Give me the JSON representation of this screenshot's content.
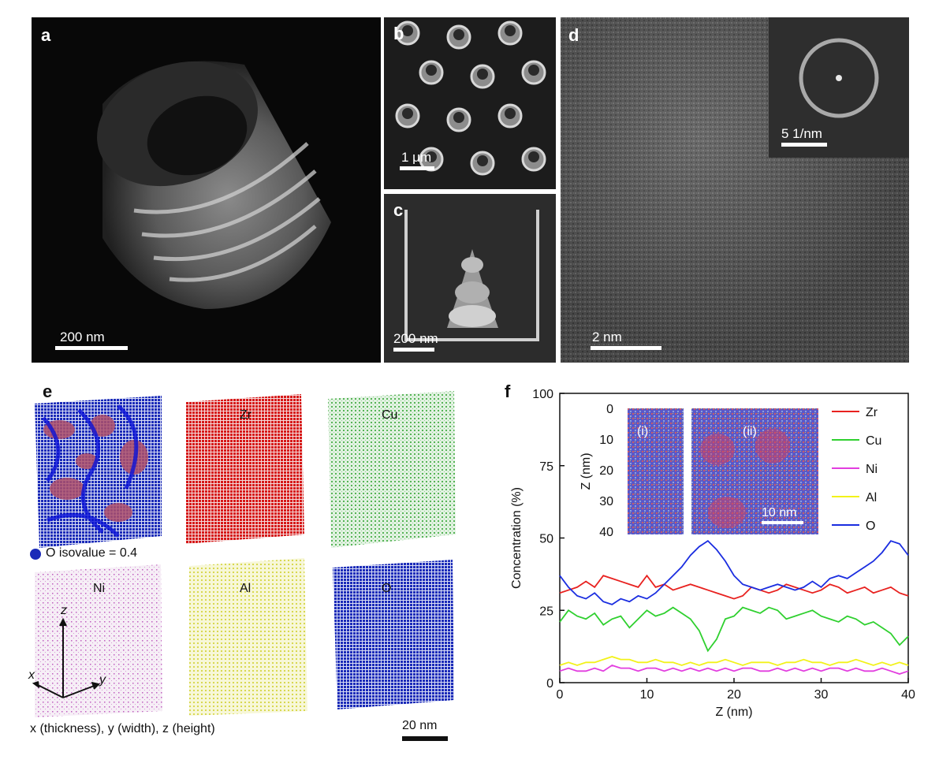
{
  "panels": {
    "a": {
      "label": "a",
      "scale": "200 nm"
    },
    "b": {
      "label": "b",
      "scale": "1 μm"
    },
    "c": {
      "label": "c",
      "scale": "200 nm"
    },
    "d": {
      "label": "d",
      "scale": "2 nm",
      "inset_scale": "5 1/nm"
    },
    "e": {
      "label": "e",
      "cubes": [
        "Zr",
        "Cu",
        "Ni",
        "Al",
        "O"
      ],
      "iso_text": "O isovalue = 0.4",
      "axes": {
        "x": "x",
        "y": "y",
        "z": "z"
      },
      "axes_caption": "x (thickness), y (width), z (height)",
      "scale": "20 nm"
    },
    "f": {
      "label": "f"
    }
  },
  "colors": {
    "Zr": "#e8211f",
    "Cu": "#2fd02f",
    "Ni": "#e23ddf",
    "Al": "#f2f21a",
    "O": "#1a2de0"
  },
  "chart_data": {
    "type": "line",
    "xlabel": "Z (nm)",
    "ylabel": "Concentration (%)",
    "xlim": [
      0,
      40
    ],
    "ylim": [
      0,
      100
    ],
    "xticks": [
      0,
      10,
      20,
      30,
      40
    ],
    "yticks": [
      0,
      25,
      50,
      75,
      100
    ],
    "legend_position": "right",
    "x": [
      0,
      1,
      2,
      3,
      4,
      5,
      6,
      7,
      8,
      9,
      10,
      11,
      12,
      13,
      14,
      15,
      16,
      17,
      18,
      19,
      20,
      21,
      22,
      23,
      24,
      25,
      26,
      27,
      28,
      29,
      30,
      31,
      32,
      33,
      34,
      35,
      36,
      37,
      38,
      39,
      40
    ],
    "series": [
      {
        "name": "Zr",
        "color": "#e8211f",
        "values": [
          31,
          32,
          33,
          35,
          33,
          37,
          36,
          35,
          34,
          33,
          37,
          33,
          34,
          32,
          33,
          34,
          33,
          32,
          31,
          30,
          29,
          30,
          33,
          32,
          31,
          32,
          34,
          33,
          32,
          31,
          32,
          34,
          33,
          31,
          32,
          33,
          31,
          32,
          33,
          31,
          30
        ]
      },
      {
        "name": "Cu",
        "color": "#2fd02f",
        "values": [
          21,
          25,
          23,
          22,
          24,
          20,
          22,
          23,
          19,
          22,
          25,
          23,
          24,
          26,
          24,
          22,
          18,
          11,
          15,
          22,
          23,
          26,
          25,
          24,
          26,
          25,
          22,
          23,
          24,
          25,
          23,
          22,
          21,
          23,
          22,
          20,
          21,
          19,
          17,
          13,
          16
        ]
      },
      {
        "name": "Ni",
        "color": "#e23ddf",
        "values": [
          4,
          5,
          4,
          4,
          5,
          4,
          6,
          5,
          5,
          4,
          5,
          5,
          4,
          5,
          4,
          5,
          4,
          5,
          4,
          5,
          4,
          5,
          5,
          4,
          4,
          5,
          4,
          5,
          4,
          5,
          4,
          5,
          5,
          4,
          5,
          4,
          4,
          5,
          4,
          3,
          4
        ]
      },
      {
        "name": "Al",
        "color": "#f2f21a",
        "values": [
          6,
          7,
          6,
          7,
          7,
          8,
          9,
          8,
          8,
          7,
          7,
          8,
          7,
          7,
          6,
          7,
          6,
          7,
          7,
          8,
          7,
          6,
          7,
          7,
          7,
          6,
          7,
          7,
          8,
          7,
          7,
          6,
          7,
          7,
          8,
          7,
          6,
          7,
          6,
          7,
          6
        ]
      },
      {
        "name": "O",
        "color": "#1a2de0",
        "values": [
          37,
          33,
          30,
          29,
          31,
          28,
          27,
          29,
          28,
          30,
          29,
          31,
          34,
          37,
          40,
          44,
          47,
          49,
          46,
          42,
          37,
          34,
          33,
          32,
          33,
          34,
          33,
          32,
          33,
          35,
          33,
          36,
          37,
          36,
          38,
          40,
          42,
          45,
          49,
          48,
          44
        ]
      }
    ],
    "inset": {
      "ylabel": "Z (nm)",
      "yticks": [
        0,
        10,
        20,
        30,
        40
      ],
      "labels": [
        "(i)",
        "(ii)"
      ],
      "scale": "10 nm"
    }
  }
}
